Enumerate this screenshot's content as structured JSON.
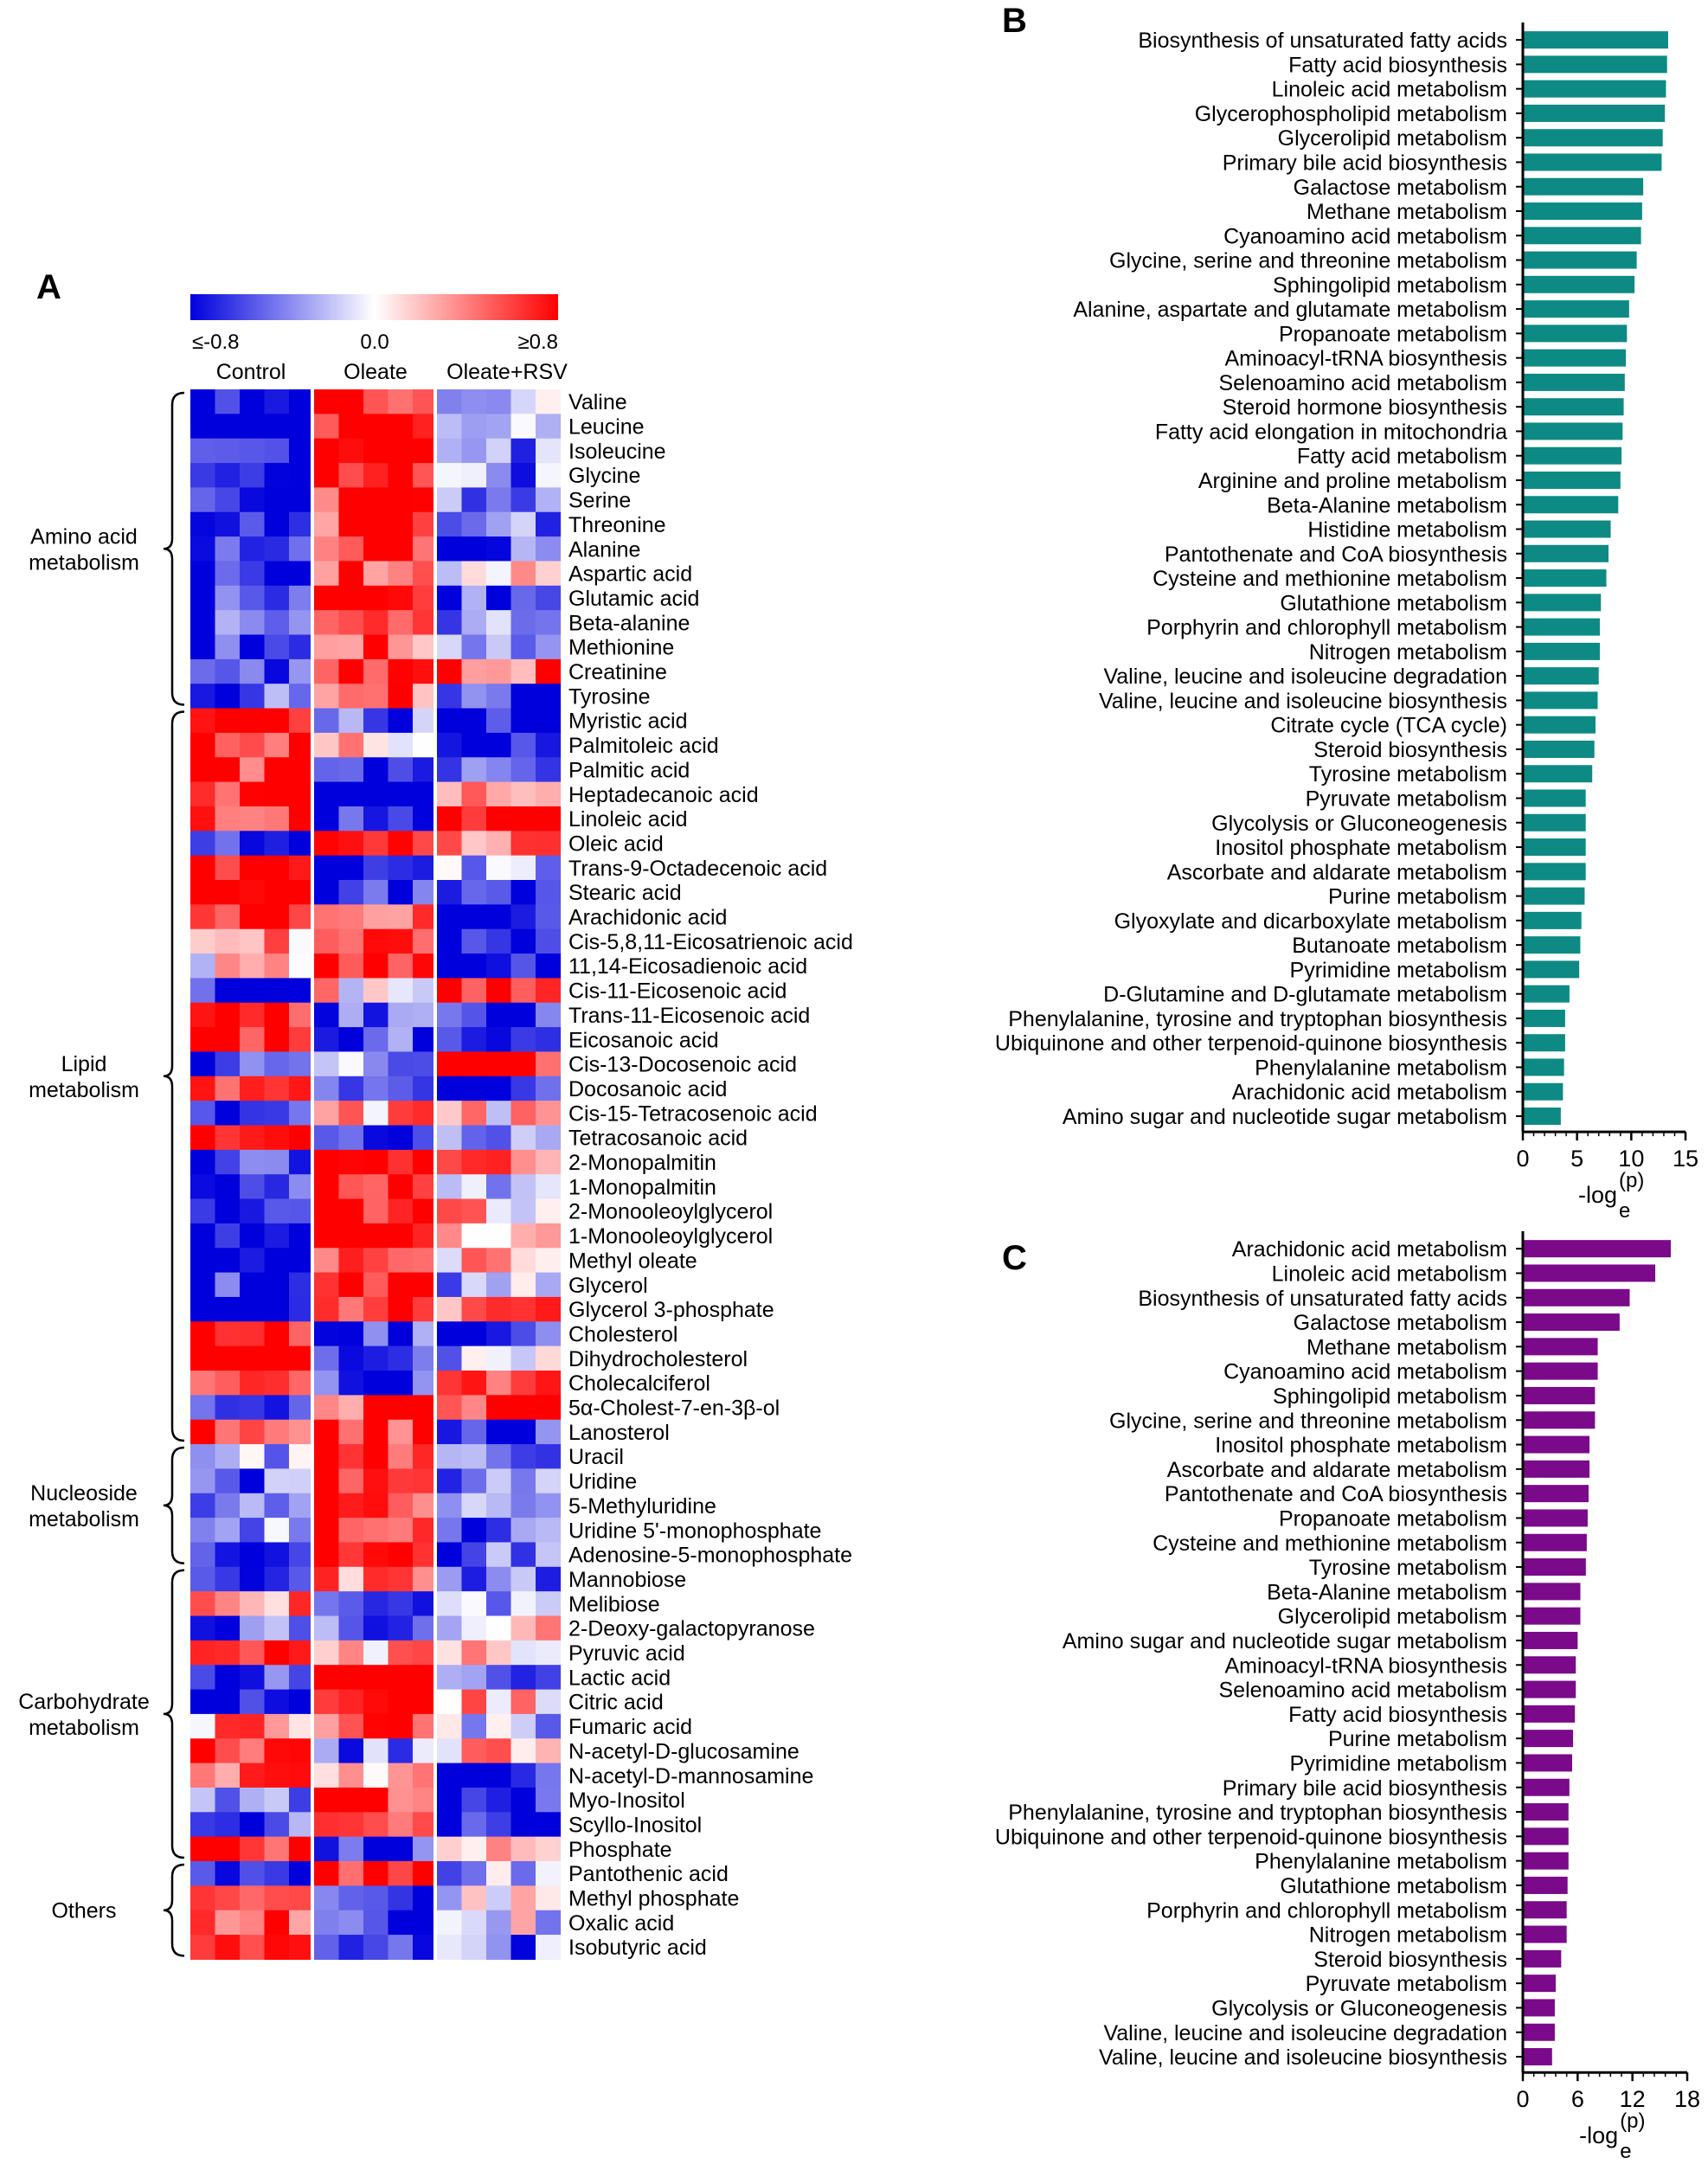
{
  "panels": {
    "a_label": "A",
    "b_label": "B",
    "c_label": "C"
  },
  "colors": {
    "low": "#0000dd",
    "mid": "#ffffff",
    "high": "#ff0000",
    "bar_b": "#0e8a84",
    "bar_c": "#7a0a8a"
  },
  "chart_data": [
    {
      "type": "heatmap",
      "colorbar": {
        "min_label": "≤-0.8",
        "mid_label": "0.0",
        "max_label": "≥0.8",
        "range": [
          -0.8,
          0.8
        ]
      },
      "group_labels": [
        "Control",
        "Oleate",
        "Oleate+RSV"
      ],
      "categories": [
        {
          "lines": [
            "Amino acid",
            "metabolism"
          ],
          "range": [
            0,
            12
          ]
        },
        {
          "lines": [
            "Lipid",
            "metabolism"
          ],
          "range": [
            13,
            42
          ]
        },
        {
          "lines": [
            "Nucleoside",
            "metabolism"
          ],
          "range": [
            43,
            47
          ]
        },
        {
          "lines": [
            "Carbohydrate",
            "metabolism"
          ],
          "range": [
            48,
            59
          ]
        },
        {
          "lines": [
            "Others"
          ],
          "range": [
            60,
            63
          ]
        }
      ],
      "rows": [
        "Valine",
        "Leucine",
        "Isoleucine",
        "Glycine",
        "Serine",
        "Threonine",
        "Alanine",
        "Aspartic acid",
        "Glutamic acid",
        "Beta-alanine",
        "Methionine",
        "Creatinine",
        "Tyrosine",
        "Myristic acid",
        "Palmitoleic acid",
        "Palmitic acid",
        "Heptadecanoic acid",
        "Linoleic acid",
        "Oleic acid",
        "Trans-9-Octadecenoic acid",
        "Stearic acid",
        "Arachidonic acid",
        "Cis-5,8,11-Eicosatrienoic acid",
        "11,14-Eicosadienoic acid",
        "Cis-11-Eicosenoic acid",
        "Trans-11-Eicosenoic acid",
        "Eicosanoic acid",
        "Cis-13-Docosenoic acid",
        "Docosanoic acid",
        "Cis-15-Tetracosenoic acid",
        "Tetracosanoic acid",
        "2-Monopalmitin",
        "1-Monopalmitin",
        "2-Monooleoylglycerol",
        "1-Monooleoylglycerol",
        "Methyl oleate",
        "Glycerol",
        "Glycerol 3-phosphate",
        "Cholesterol",
        "Dihydrocholesterol",
        "Cholecalciferol",
        "5α-Cholest-7-en-3β-ol",
        "Lanosterol",
        "Uracil",
        "Uridine",
        "5-Methyluridine",
        "Uridine 5'-monophosphate",
        "Adenosine-5-monophosphate",
        "Mannobiose",
        "Melibiose",
        "2-Deoxy-galactopyranose",
        "Pyruvic acid",
        "Lactic acid",
        "Citric acid",
        "Fumaric acid",
        "N-acetyl-D-glucosamine",
        "N-acetyl-D-mannosamine",
        "Myo-Inositol",
        "Scyllo-Inositol",
        "Phosphate",
        "Pantothenic acid",
        "Methyl phosphate",
        "Oxalic acid",
        "Isobutyric acid"
      ],
      "group_means": [
        [
          -0.8,
          0.75,
          -0.1
        ],
        [
          -0.8,
          0.75,
          -0.2
        ],
        [
          -0.75,
          0.8,
          -0.3
        ],
        [
          -0.8,
          0.8,
          -0.4
        ],
        [
          -0.8,
          0.75,
          -0.5
        ],
        [
          -0.8,
          0.6,
          -0.5
        ],
        [
          -0.8,
          0.75,
          -0.6
        ],
        [
          -0.8,
          0.55,
          0.1
        ],
        [
          -0.6,
          0.7,
          -0.5
        ],
        [
          -0.6,
          0.6,
          -0.3
        ],
        [
          -0.55,
          0.55,
          -0.2
        ],
        [
          -0.65,
          0.7,
          0.6
        ],
        [
          -0.6,
          0.55,
          -0.6
        ],
        [
          0.8,
          -0.5,
          -0.7
        ],
        [
          0.8,
          0.1,
          -0.8
        ],
        [
          0.75,
          -0.75,
          -0.4
        ],
        [
          0.7,
          -0.8,
          0.2
        ],
        [
          0.75,
          -0.8,
          0.7
        ],
        [
          -0.8,
          0.8,
          0.5
        ],
        [
          0.8,
          -0.8,
          -0.3
        ],
        [
          0.8,
          -0.7,
          -0.8
        ],
        [
          0.8,
          0.5,
          -0.8
        ],
        [
          0.3,
          0.8,
          -0.8
        ],
        [
          0.1,
          0.8,
          -0.8
        ],
        [
          -0.8,
          0.1,
          0.8
        ],
        [
          0.8,
          -0.5,
          -0.6
        ],
        [
          0.8,
          -0.6,
          -0.7
        ],
        [
          -0.6,
          -0.2,
          0.8
        ],
        [
          0.8,
          -0.6,
          -0.8
        ],
        [
          -0.5,
          0.3,
          0.1
        ],
        [
          0.8,
          -0.5,
          -0.5
        ],
        [
          -0.7,
          0.8,
          0.3
        ],
        [
          -0.6,
          0.8,
          -0.3
        ],
        [
          -0.8,
          0.8,
          0.2
        ],
        [
          -0.8,
          0.8,
          0.1
        ],
        [
          -0.8,
          0.75,
          0.2
        ],
        [
          -0.75,
          0.8,
          -0.3
        ],
        [
          -0.8,
          0.75,
          0.4
        ],
        [
          0.8,
          -0.5,
          -0.5
        ],
        [
          0.8,
          -0.7,
          -0.2
        ],
        [
          0.8,
          -0.7,
          0.5
        ],
        [
          -0.7,
          0.6,
          0.7
        ],
        [
          0.6,
          0.7,
          -0.7
        ],
        [
          -0.3,
          0.8,
          -0.6
        ],
        [
          -0.5,
          0.65,
          -0.5
        ],
        [
          -0.6,
          0.7,
          -0.4
        ],
        [
          -0.4,
          0.7,
          -0.5
        ],
        [
          -0.7,
          0.8,
          -0.5
        ],
        [
          -0.4,
          0.5,
          -0.4
        ],
        [
          0.3,
          -0.8,
          -0.2
        ],
        [
          -0.5,
          -0.5,
          0.1
        ],
        [
          0.7,
          0.2,
          0.2
        ],
        [
          -0.5,
          0.8,
          -0.6
        ],
        [
          -0.7,
          0.8,
          0.2
        ],
        [
          0.3,
          0.6,
          -0.3
        ],
        [
          0.8,
          -0.4,
          0.3
        ],
        [
          0.6,
          0.3,
          -0.8
        ],
        [
          -0.5,
          0.7,
          -0.7
        ],
        [
          -0.6,
          0.8,
          -0.8
        ],
        [
          0.8,
          -0.7,
          0.3
        ],
        [
          -0.8,
          0.8,
          -0.3
        ],
        [
          0.4,
          -0.6,
          -0.1
        ],
        [
          0.6,
          -0.7,
          -0.1
        ],
        [
          0.5,
          -0.5,
          -0.4
        ]
      ]
    },
    {
      "type": "bar",
      "orientation": "horizontal",
      "xlabel": "-log",
      "xlabel_sub": "e",
      "xlabel_sup": "(p)",
      "xlim": [
        0,
        15
      ],
      "xticks": [
        "0",
        "5",
        "10",
        "15"
      ],
      "categories": [
        "Biosynthesis of unsaturated fatty acids",
        "Fatty acid biosynthesis",
        "Linoleic acid metabolism",
        "Glycerophospholipid metabolism",
        "Glycerolipid metabolism",
        "Primary bile acid biosynthesis",
        "Galactose metabolism",
        "Methane metabolism",
        "Cyanoamino acid metabolism",
        "Glycine, serine and threonine metabolism",
        "Sphingolipid metabolism",
        "Alanine, aspartate and glutamate metabolism",
        "Propanoate metabolism",
        "Aminoacyl-tRNA biosynthesis",
        "Selenoamino acid metabolism",
        "Steroid hormone biosynthesis",
        "Fatty acid elongation in mitochondria",
        "Fatty acid metabolism",
        "Arginine and proline metabolism",
        "Beta-Alanine metabolism",
        "Histidine metabolism",
        "Pantothenate and CoA biosynthesis",
        "Cysteine and methionine metabolism",
        "Glutathione metabolism",
        "Porphyrin and chlorophyll metabolism",
        "Nitrogen metabolism",
        "Valine, leucine and isoleucine degradation",
        "Valine, leucine and isoleucine biosynthesis",
        "Citrate cycle (TCA cycle)",
        "Steroid biosynthesis",
        "Tyrosine metabolism",
        "Pyruvate metabolism",
        "Glycolysis or Gluconeogenesis",
        "Inositol phosphate metabolism",
        "Ascorbate and aldarate metabolism",
        "Purine metabolism",
        "Glyoxylate and dicarboxylate metabolism",
        "Butanoate metabolism",
        "Pyrimidine metabolism",
        "D-Glutamine and D-glutamate metabolism",
        "Phenylalanine, tyrosine and tryptophan biosynthesis",
        "Ubiquinone and other terpenoid-quinone biosynthesis",
        "Phenylalanine metabolism",
        "Arachidonic acid metabolism",
        "Amino sugar and nucleotide sugar metabolism"
      ],
      "values": [
        13.4,
        13.3,
        13.2,
        13.1,
        12.9,
        12.8,
        11.1,
        11.0,
        10.9,
        10.5,
        10.3,
        9.8,
        9.6,
        9.5,
        9.4,
        9.3,
        9.2,
        9.1,
        9.0,
        8.8,
        8.1,
        7.9,
        7.7,
        7.2,
        7.1,
        7.1,
        7.0,
        6.9,
        6.7,
        6.6,
        6.4,
        5.8,
        5.8,
        5.8,
        5.8,
        5.7,
        5.4,
        5.3,
        5.2,
        4.3,
        3.9,
        3.9,
        3.8,
        3.7,
        3.5
      ]
    },
    {
      "type": "bar",
      "orientation": "horizontal",
      "xlabel": "-log",
      "xlabel_sub": "e",
      "xlabel_sup": "(p)",
      "xlim": [
        0,
        18
      ],
      "xticks": [
        "0",
        "6",
        "12",
        "18"
      ],
      "categories": [
        "Arachidonic acid metabolism",
        "Linoleic acid metabolism",
        "Biosynthesis of unsaturated fatty acids",
        "Galactose metabolism",
        "Methane metabolism",
        "Cyanoamino acid metabolism",
        "Sphingolipid metabolism",
        "Glycine, serine and threonine metabolism",
        "Inositol phosphate metabolism",
        "Ascorbate and aldarate metabolism",
        "Pantothenate and CoA biosynthesis",
        "Propanoate metabolism",
        "Cysteine and methionine metabolism",
        "Tyrosine metabolism",
        "Beta-Alanine metabolism",
        "Glycerolipid metabolism",
        "Amino sugar and nucleotide sugar metabolism",
        "Aminoacyl-tRNA biosynthesis",
        "Selenoamino acid metabolism",
        "Fatty acid biosynthesis",
        "Purine metabolism",
        "Pyrimidine metabolism",
        "Primary bile acid biosynthesis",
        "Phenylalanine, tyrosine and tryptophan biosynthesis",
        "Ubiquinone and other terpenoid-quinone biosynthesis",
        "Phenylalanine metabolism",
        "Glutathione metabolism",
        "Porphyrin and chlorophyll metabolism",
        "Nitrogen metabolism",
        "Steroid biosynthesis",
        "Pyruvate metabolism",
        "Glycolysis or Gluconeogenesis",
        "Valine, leucine and isoleucine degradation",
        "Valine, leucine and isoleucine biosynthesis"
      ],
      "values": [
        16.2,
        14.5,
        11.7,
        10.6,
        8.2,
        8.2,
        7.9,
        7.9,
        7.3,
        7.3,
        7.2,
        7.1,
        7.0,
        6.9,
        6.3,
        6.3,
        6.0,
        5.8,
        5.8,
        5.7,
        5.5,
        5.4,
        5.1,
        5.0,
        5.0,
        5.0,
        4.9,
        4.8,
        4.8,
        4.2,
        3.6,
        3.5,
        3.5,
        3.2
      ]
    }
  ]
}
